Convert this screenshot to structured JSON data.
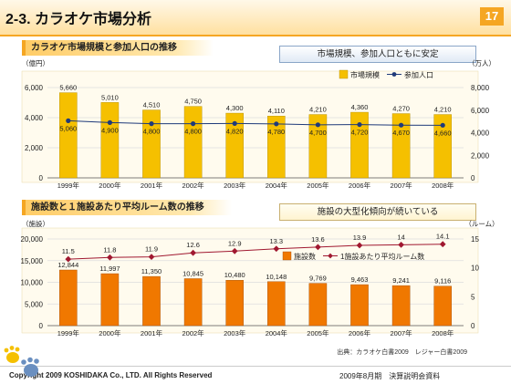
{
  "header": {
    "title": "2-3. カラオケ市場分析",
    "page": "17"
  },
  "sections": [
    {
      "title": "カラオケ市場規模と参加人口の推移",
      "callout": "市場規模、参加人口ともに安定"
    },
    {
      "title": "施設数と１施設あたり平均ルーム数の推移",
      "callout": "施設の大型化傾向が続いている"
    }
  ],
  "chart_data": [
    {
      "type": "bar",
      "categories": [
        "1999年",
        "2000年",
        "2001年",
        "2002年",
        "2003年",
        "2004年",
        "2005年",
        "2006年",
        "2007年",
        "2008年"
      ],
      "series": [
        {
          "name": "市場規模",
          "type": "bar",
          "axis": "left",
          "values": [
            5660,
            5010,
            4510,
            4750,
            4300,
            4110,
            4210,
            4360,
            4270,
            4210
          ],
          "color": "#f5c000"
        },
        {
          "name": "参加人口",
          "type": "line",
          "axis": "right",
          "values": [
            5060,
            4900,
            4800,
            4800,
            4820,
            4780,
            4700,
            4720,
            4670,
            4660
          ],
          "color": "#1f3a7a"
        }
      ],
      "yleft": {
        "unit": "（億円）",
        "lim": [
          0,
          6000
        ],
        "ticks": [
          0,
          2000,
          4000,
          6000
        ]
      },
      "yright": {
        "unit": "（万人）",
        "lim": [
          0,
          8000
        ],
        "ticks": [
          0,
          2000,
          4000,
          6000,
          8000
        ]
      },
      "legend": "top-right"
    },
    {
      "type": "bar",
      "categories": [
        "1999年",
        "2000年",
        "2001年",
        "2002年",
        "2003年",
        "2004年",
        "2005年",
        "2006年",
        "2007年",
        "2008年"
      ],
      "series": [
        {
          "name": "施設数",
          "type": "bar",
          "axis": "left",
          "values": [
            12844,
            11997,
            11350,
            10845,
            10480,
            10148,
            9769,
            9463,
            9241,
            9116
          ],
          "color": "#f07800"
        },
        {
          "name": "1施設あたり平均ルーム数",
          "type": "line",
          "axis": "right",
          "values": [
            11.5,
            11.8,
            11.9,
            12.6,
            12.9,
            13.3,
            13.6,
            13.9,
            14.0,
            14.1
          ],
          "color": "#a01830"
        }
      ],
      "yleft": {
        "unit": "（施設）",
        "lim": [
          0,
          20000
        ],
        "ticks": [
          0,
          5000,
          10000,
          15000,
          20000
        ]
      },
      "yright": {
        "unit": "（ルーム）",
        "lim": [
          0,
          15
        ],
        "ticks": [
          0,
          5,
          10,
          15
        ]
      },
      "legend": "top-right"
    }
  ],
  "source": "出典：カラオケ白書2009　レジャー白書2009",
  "footer": {
    "copyright": "Copyright 2009 KOSHIDAKA Co., LTD. All Rights Reserved",
    "doc": "2009年8月期　決算説明会資料"
  }
}
